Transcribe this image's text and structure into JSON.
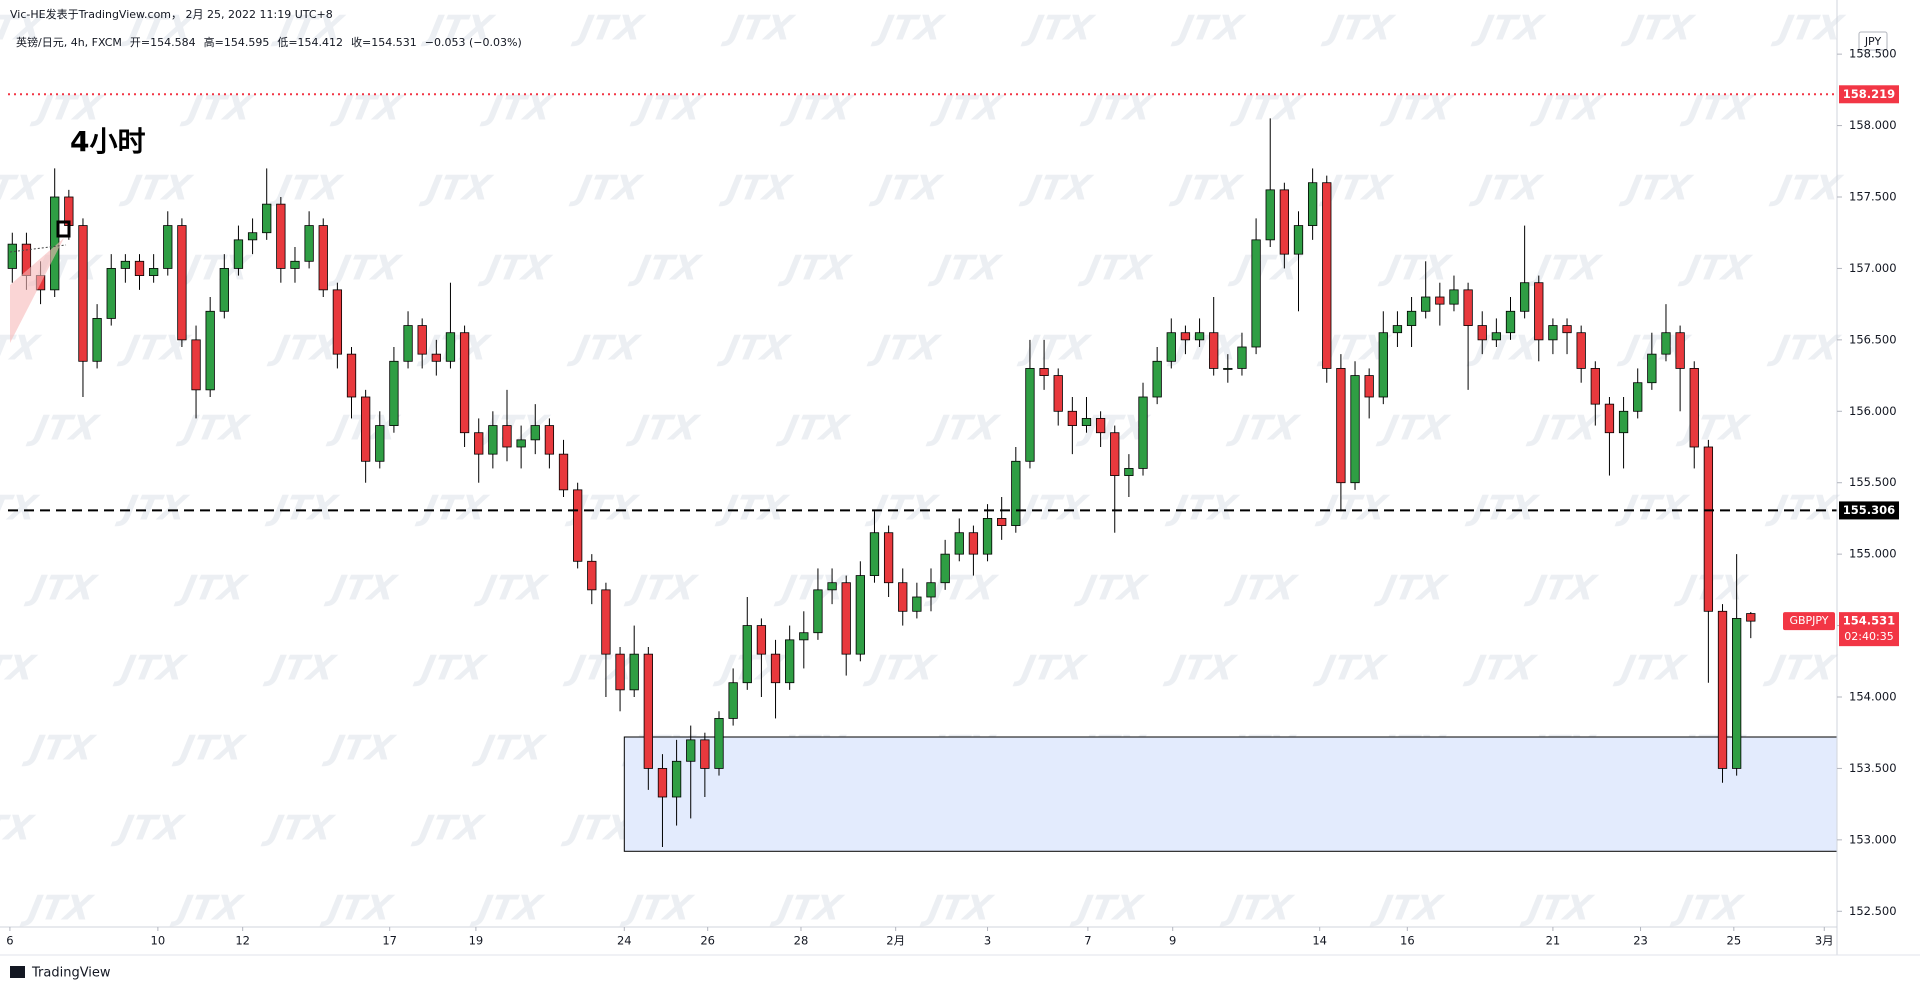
{
  "chart_data": {
    "type": "candlestick",
    "attribution": "Vic-HE发表于TradingView.com， 2月 25, 2022 11:19 UTC+8",
    "legend_text": [
      "英镑/日元, 4h, FXCM",
      "开=154.584",
      "高=154.595",
      "低=154.412",
      "收=154.531",
      "−0.053 (−0.03%)"
    ],
    "annotation": "4小时",
    "currency": "JPY",
    "watermark": "JTX",
    "footer": "TradingView",
    "up_color": "#2f9e44",
    "down_color": "#e8393d",
    "grid": false,
    "ylim": [
      152.39,
      158.69
    ],
    "yticks": [
      {
        "value": 152.5,
        "label": "152.500"
      },
      {
        "value": 153,
        "label": "153.000"
      },
      {
        "value": 153.5,
        "label": "153.500"
      },
      {
        "value": 154,
        "label": "154.000"
      },
      {
        "value": 154.5,
        "label": "154.500"
      },
      {
        "value": 155,
        "label": "155.000"
      },
      {
        "value": 155.5,
        "label": "155.500"
      },
      {
        "value": 156,
        "label": "156.000"
      },
      {
        "value": 156.5,
        "label": "156.500"
      },
      {
        "value": 157,
        "label": "157.000"
      },
      {
        "value": 157.5,
        "label": "157.500"
      },
      {
        "value": 158,
        "label": "158.000"
      },
      {
        "value": 158.5,
        "label": "158.500"
      }
    ],
    "xlim": [
      -0.87,
      129.1
    ],
    "xticks": [
      {
        "value": -0.17,
        "label": "6"
      },
      {
        "value": 10.3,
        "label": "10"
      },
      {
        "value": 16.3,
        "label": "12"
      },
      {
        "value": 26.7,
        "label": "17"
      },
      {
        "value": 32.8,
        "label": "19"
      },
      {
        "value": 43.3,
        "label": "24"
      },
      {
        "value": 49.2,
        "label": "26"
      },
      {
        "value": 55.8,
        "label": "28"
      },
      {
        "value": 62.5,
        "label": "2月"
      },
      {
        "value": 69.0,
        "label": "3"
      },
      {
        "value": 76.1,
        "label": "7"
      },
      {
        "value": 82.1,
        "label": "9"
      },
      {
        "value": 92.5,
        "label": "14"
      },
      {
        "value": 98.7,
        "label": "16"
      },
      {
        "value": 109.0,
        "label": "21"
      },
      {
        "value": 115.2,
        "label": "23"
      },
      {
        "value": 121.8,
        "label": "25"
      },
      {
        "value": 128.2,
        "label": "3月"
      }
    ],
    "levels": [
      {
        "value": 158.219,
        "color": "#f23645",
        "style": "dotted"
      },
      {
        "value": 155.306,
        "color": "#000000",
        "style": "dashed"
      }
    ],
    "zone": {
      "x_start": 43.3,
      "ylim": [
        152.92,
        153.72
      ]
    },
    "last_price": {
      "symbol": "GBPJPY",
      "value": 154.531,
      "countdown": "02:40:35"
    },
    "ohlc": [
      [
        157.0,
        157.25,
        156.9,
        157.17
      ],
      [
        157.17,
        157.25,
        156.85,
        156.95
      ],
      [
        156.95,
        157.05,
        156.75,
        156.85
      ],
      [
        156.85,
        157.7,
        156.8,
        157.5
      ],
      [
        157.5,
        157.55,
        157.2,
        157.3
      ],
      [
        157.3,
        157.35,
        156.1,
        156.35
      ],
      [
        156.35,
        156.75,
        156.3,
        156.65
      ],
      [
        156.65,
        157.1,
        156.6,
        157.0
      ],
      [
        157.0,
        157.1,
        156.9,
        157.05
      ],
      [
        157.05,
        157.1,
        156.85,
        156.95
      ],
      [
        156.95,
        157.1,
        156.9,
        157.0
      ],
      [
        157.0,
        157.4,
        156.95,
        157.3
      ],
      [
        157.3,
        157.35,
        156.45,
        156.5
      ],
      [
        156.5,
        156.6,
        155.95,
        156.15
      ],
      [
        156.15,
        156.8,
        156.1,
        156.7
      ],
      [
        156.7,
        157.1,
        156.65,
        157.0
      ],
      [
        157.0,
        157.3,
        156.95,
        157.2
      ],
      [
        157.2,
        157.35,
        157.1,
        157.25
      ],
      [
        157.25,
        157.7,
        157.2,
        157.45
      ],
      [
        157.45,
        157.5,
        156.9,
        157.0
      ],
      [
        157.0,
        157.15,
        156.9,
        157.05
      ],
      [
        157.05,
        157.4,
        157.0,
        157.3
      ],
      [
        157.3,
        157.35,
        156.8,
        156.85
      ],
      [
        156.85,
        156.9,
        156.3,
        156.4
      ],
      [
        156.4,
        156.45,
        155.95,
        156.1
      ],
      [
        156.1,
        156.15,
        155.5,
        155.65
      ],
      [
        155.65,
        156.0,
        155.6,
        155.9
      ],
      [
        155.9,
        156.45,
        155.85,
        156.35
      ],
      [
        156.35,
        156.7,
        156.3,
        156.6
      ],
      [
        156.6,
        156.65,
        156.3,
        156.4
      ],
      [
        156.4,
        156.5,
        156.25,
        156.35
      ],
      [
        156.35,
        156.9,
        156.3,
        156.55
      ],
      [
        156.55,
        156.6,
        155.75,
        155.85
      ],
      [
        155.85,
        155.95,
        155.5,
        155.7
      ],
      [
        155.7,
        156.0,
        155.6,
        155.9
      ],
      [
        155.9,
        156.15,
        155.65,
        155.75
      ],
      [
        155.75,
        155.9,
        155.6,
        155.8
      ],
      [
        155.8,
        156.05,
        155.7,
        155.9
      ],
      [
        155.9,
        155.95,
        155.6,
        155.7
      ],
      [
        155.7,
        155.8,
        155.4,
        155.45
      ],
      [
        155.45,
        155.5,
        154.9,
        154.95
      ],
      [
        154.95,
        155.0,
        154.65,
        154.75
      ],
      [
        154.75,
        154.8,
        154.0,
        154.3
      ],
      [
        154.3,
        154.35,
        153.9,
        154.05
      ],
      [
        154.05,
        154.5,
        154.0,
        154.3
      ],
      [
        154.3,
        154.35,
        153.35,
        153.5
      ],
      [
        153.5,
        153.6,
        152.95,
        153.3
      ],
      [
        153.3,
        153.7,
        153.1,
        153.55
      ],
      [
        153.55,
        153.8,
        153.15,
        153.7
      ],
      [
        153.7,
        153.75,
        153.3,
        153.5
      ],
      [
        153.5,
        153.9,
        153.45,
        153.85
      ],
      [
        153.85,
        154.2,
        153.8,
        154.1
      ],
      [
        154.1,
        154.7,
        154.05,
        154.5
      ],
      [
        154.5,
        154.55,
        154.0,
        154.3
      ],
      [
        154.3,
        154.4,
        153.85,
        154.1
      ],
      [
        154.1,
        154.5,
        154.05,
        154.4
      ],
      [
        154.4,
        154.6,
        154.2,
        154.45
      ],
      [
        154.45,
        154.9,
        154.4,
        154.75
      ],
      [
        154.75,
        154.9,
        154.65,
        154.8
      ],
      [
        154.8,
        154.85,
        154.15,
        154.3
      ],
      [
        154.3,
        154.95,
        154.25,
        154.85
      ],
      [
        154.85,
        155.3,
        154.8,
        155.15
      ],
      [
        155.15,
        155.2,
        154.7,
        154.8
      ],
      [
        154.8,
        154.9,
        154.5,
        154.6
      ],
      [
        154.6,
        154.8,
        154.55,
        154.7
      ],
      [
        154.7,
        154.9,
        154.6,
        154.8
      ],
      [
        154.8,
        155.1,
        154.75,
        155.0
      ],
      [
        155.0,
        155.25,
        154.95,
        155.15
      ],
      [
        155.15,
        155.2,
        154.85,
        155.0
      ],
      [
        155.0,
        155.35,
        154.95,
        155.25
      ],
      [
        155.25,
        155.4,
        155.1,
        155.2
      ],
      [
        155.2,
        155.75,
        155.15,
        155.65
      ],
      [
        155.65,
        156.5,
        155.6,
        156.3
      ],
      [
        156.3,
        156.5,
        156.15,
        156.25
      ],
      [
        156.25,
        156.3,
        155.9,
        156.0
      ],
      [
        156.0,
        156.1,
        155.7,
        155.9
      ],
      [
        155.9,
        156.1,
        155.85,
        155.95
      ],
      [
        155.95,
        156.0,
        155.75,
        155.85
      ],
      [
        155.85,
        155.9,
        155.15,
        155.55
      ],
      [
        155.55,
        155.7,
        155.4,
        155.6
      ],
      [
        155.6,
        156.2,
        155.55,
        156.1
      ],
      [
        156.1,
        156.45,
        156.05,
        156.35
      ],
      [
        156.35,
        156.65,
        156.3,
        156.55
      ],
      [
        156.55,
        156.6,
        156.4,
        156.5
      ],
      [
        156.5,
        156.65,
        156.45,
        156.55
      ],
      [
        156.55,
        156.8,
        156.25,
        156.3
      ],
      [
        156.3,
        156.4,
        156.2,
        156.3
      ],
      [
        156.3,
        156.55,
        156.25,
        156.45
      ],
      [
        156.45,
        157.35,
        156.4,
        157.2
      ],
      [
        157.2,
        158.05,
        157.15,
        157.55
      ],
      [
        157.55,
        157.6,
        157.0,
        157.1
      ],
      [
        157.1,
        157.4,
        156.7,
        157.3
      ],
      [
        157.3,
        157.7,
        157.2,
        157.6
      ],
      [
        157.6,
        157.65,
        156.2,
        156.3
      ],
      [
        156.3,
        156.4,
        155.3,
        155.5
      ],
      [
        155.5,
        156.35,
        155.45,
        156.25
      ],
      [
        156.25,
        156.3,
        155.95,
        156.1
      ],
      [
        156.1,
        156.7,
        156.05,
        156.55
      ],
      [
        156.55,
        156.7,
        156.45,
        156.6
      ],
      [
        156.6,
        156.8,
        156.45,
        156.7
      ],
      [
        156.7,
        157.05,
        156.65,
        156.8
      ],
      [
        156.8,
        156.9,
        156.6,
        156.75
      ],
      [
        156.75,
        156.95,
        156.7,
        156.85
      ],
      [
        156.85,
        156.9,
        156.15,
        156.6
      ],
      [
        156.6,
        156.7,
        156.4,
        156.5
      ],
      [
        156.5,
        156.65,
        156.45,
        156.55
      ],
      [
        156.55,
        156.8,
        156.5,
        156.7
      ],
      [
        156.7,
        157.3,
        156.65,
        156.9
      ],
      [
        156.9,
        156.95,
        156.35,
        156.5
      ],
      [
        156.5,
        156.65,
        156.4,
        156.6
      ],
      [
        156.6,
        156.65,
        156.4,
        156.55
      ],
      [
        156.55,
        156.6,
        156.2,
        156.3
      ],
      [
        156.3,
        156.35,
        155.9,
        156.05
      ],
      [
        156.05,
        156.1,
        155.55,
        155.85
      ],
      [
        155.85,
        156.1,
        155.6,
        156.0
      ],
      [
        156.0,
        156.3,
        155.95,
        156.2
      ],
      [
        156.2,
        156.55,
        156.15,
        156.4
      ],
      [
        156.4,
        156.75,
        156.35,
        156.55
      ],
      [
        156.55,
        156.6,
        156.0,
        156.3
      ],
      [
        156.3,
        156.35,
        155.6,
        155.75
      ],
      [
        155.75,
        155.8,
        154.1,
        154.6
      ],
      [
        154.6,
        154.65,
        153.4,
        153.5
      ],
      [
        153.5,
        155.0,
        153.45,
        154.55
      ],
      [
        154.584,
        154.595,
        154.412,
        154.531
      ]
    ]
  }
}
